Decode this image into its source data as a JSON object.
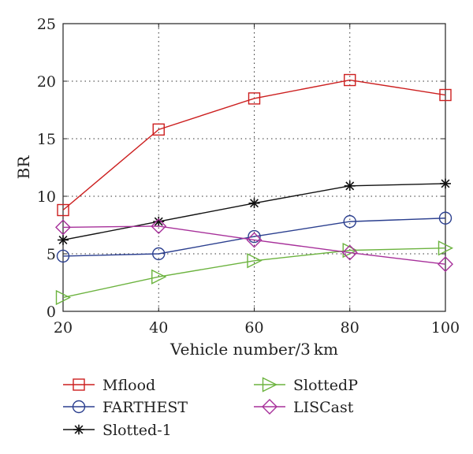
{
  "chart_data": {
    "type": "line",
    "xlabel": "Vehicle number/3 km",
    "ylabel": "BR",
    "x": [
      20,
      40,
      60,
      80,
      100
    ],
    "xlim": [
      20,
      100
    ],
    "ylim": [
      0,
      25
    ],
    "xticks": [
      "20",
      "40",
      "60",
      "80",
      "100"
    ],
    "yticks": [
      "0",
      "5",
      "10",
      "15",
      "20",
      "25"
    ],
    "grid": "dotted",
    "legend_position": "bottom",
    "series": [
      {
        "name": "Mflood",
        "color": "#cc1f1f",
        "marker": "square",
        "values": [
          8.8,
          15.8,
          18.5,
          20.1,
          18.8
        ]
      },
      {
        "name": "FARTHEST",
        "color": "#2b3f8f",
        "marker": "circle",
        "values": [
          4.8,
          5.0,
          6.5,
          7.8,
          8.1
        ]
      },
      {
        "name": "Slotted-1",
        "color": "#111111",
        "marker": "asterisk",
        "values": [
          6.2,
          7.8,
          9.4,
          10.9,
          11.1
        ]
      },
      {
        "name": "SlottedP",
        "color": "#6cb33f",
        "marker": "triangle-right",
        "values": [
          1.2,
          3.0,
          4.4,
          5.3,
          5.5
        ]
      },
      {
        "name": "LISCast",
        "color": "#a7309a",
        "marker": "diamond",
        "values": [
          7.3,
          7.4,
          6.2,
          5.1,
          4.1
        ]
      }
    ]
  }
}
